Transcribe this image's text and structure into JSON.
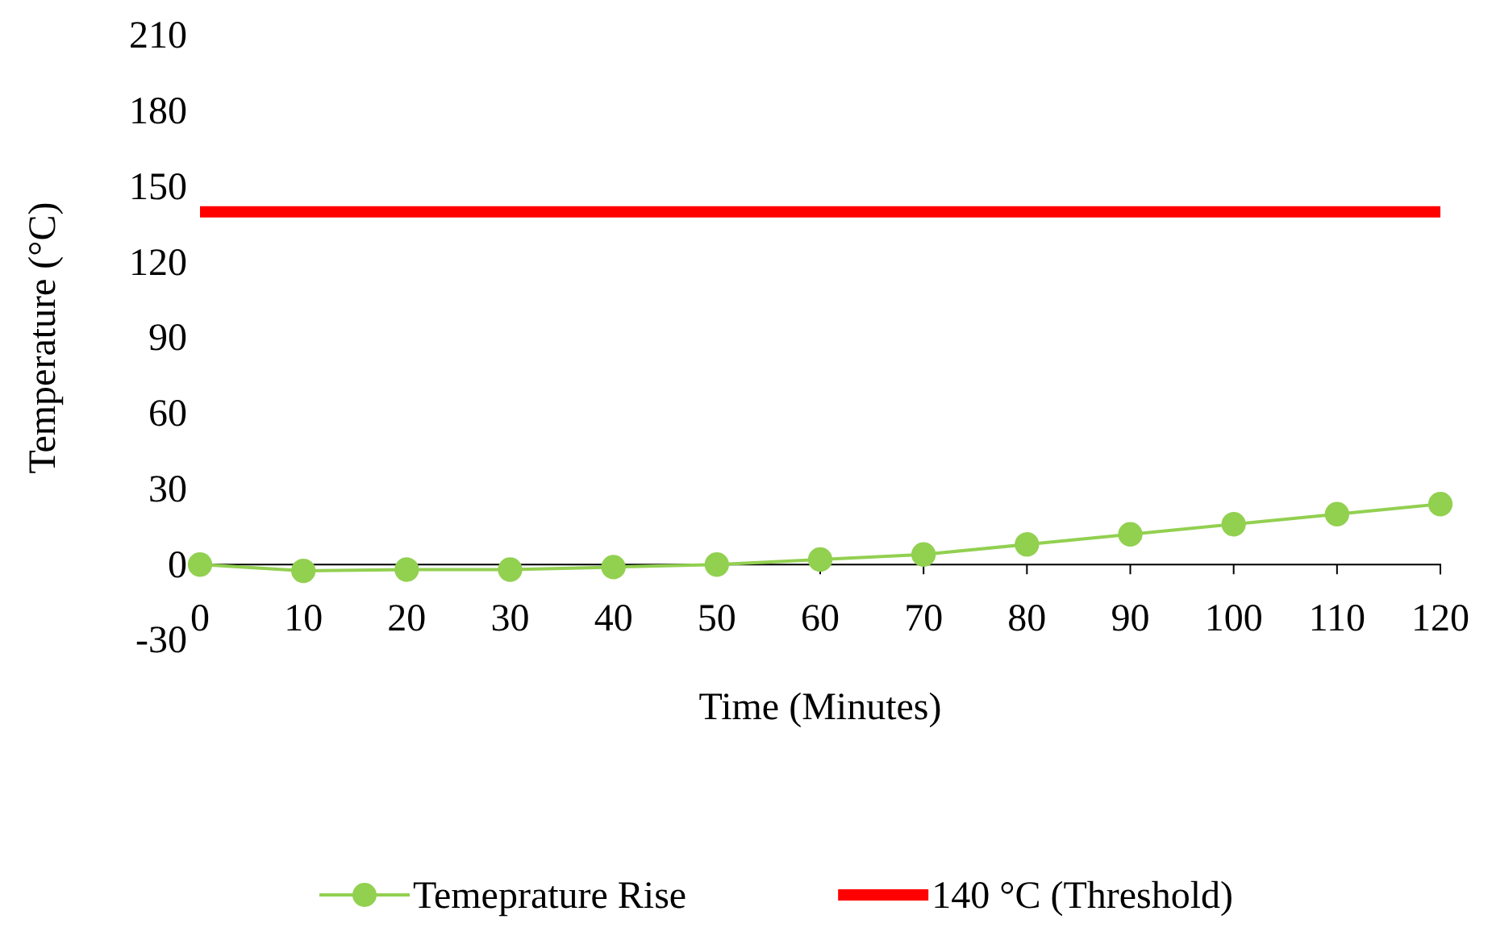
{
  "chart_data": {
    "type": "line",
    "xlabel": "Time (Minutes)",
    "ylabel": "Temperature (°C)",
    "x": [
      0,
      10,
      20,
      30,
      40,
      50,
      60,
      70,
      80,
      90,
      100,
      110,
      120
    ],
    "xlim": [
      0,
      120
    ],
    "xticks": [
      0,
      10,
      20,
      30,
      40,
      50,
      60,
      70,
      80,
      90,
      100,
      110,
      120
    ],
    "ylim": [
      -30,
      210
    ],
    "yticks": [
      -30,
      0,
      30,
      60,
      90,
      120,
      150,
      180,
      210
    ],
    "grid": false,
    "legend": "bottom",
    "series": [
      {
        "name": "Temeprature Rise",
        "color": "#92d050",
        "marker": "circle",
        "values": [
          0,
          -2.5,
          -2,
          -2,
          -1,
          0,
          2,
          4,
          8,
          12,
          16,
          20,
          24
        ]
      },
      {
        "name": "140 °C (Threshold)",
        "color": "#ff0000",
        "marker": "none",
        "x": [
          0,
          120
        ],
        "values": [
          140,
          140
        ]
      }
    ]
  }
}
